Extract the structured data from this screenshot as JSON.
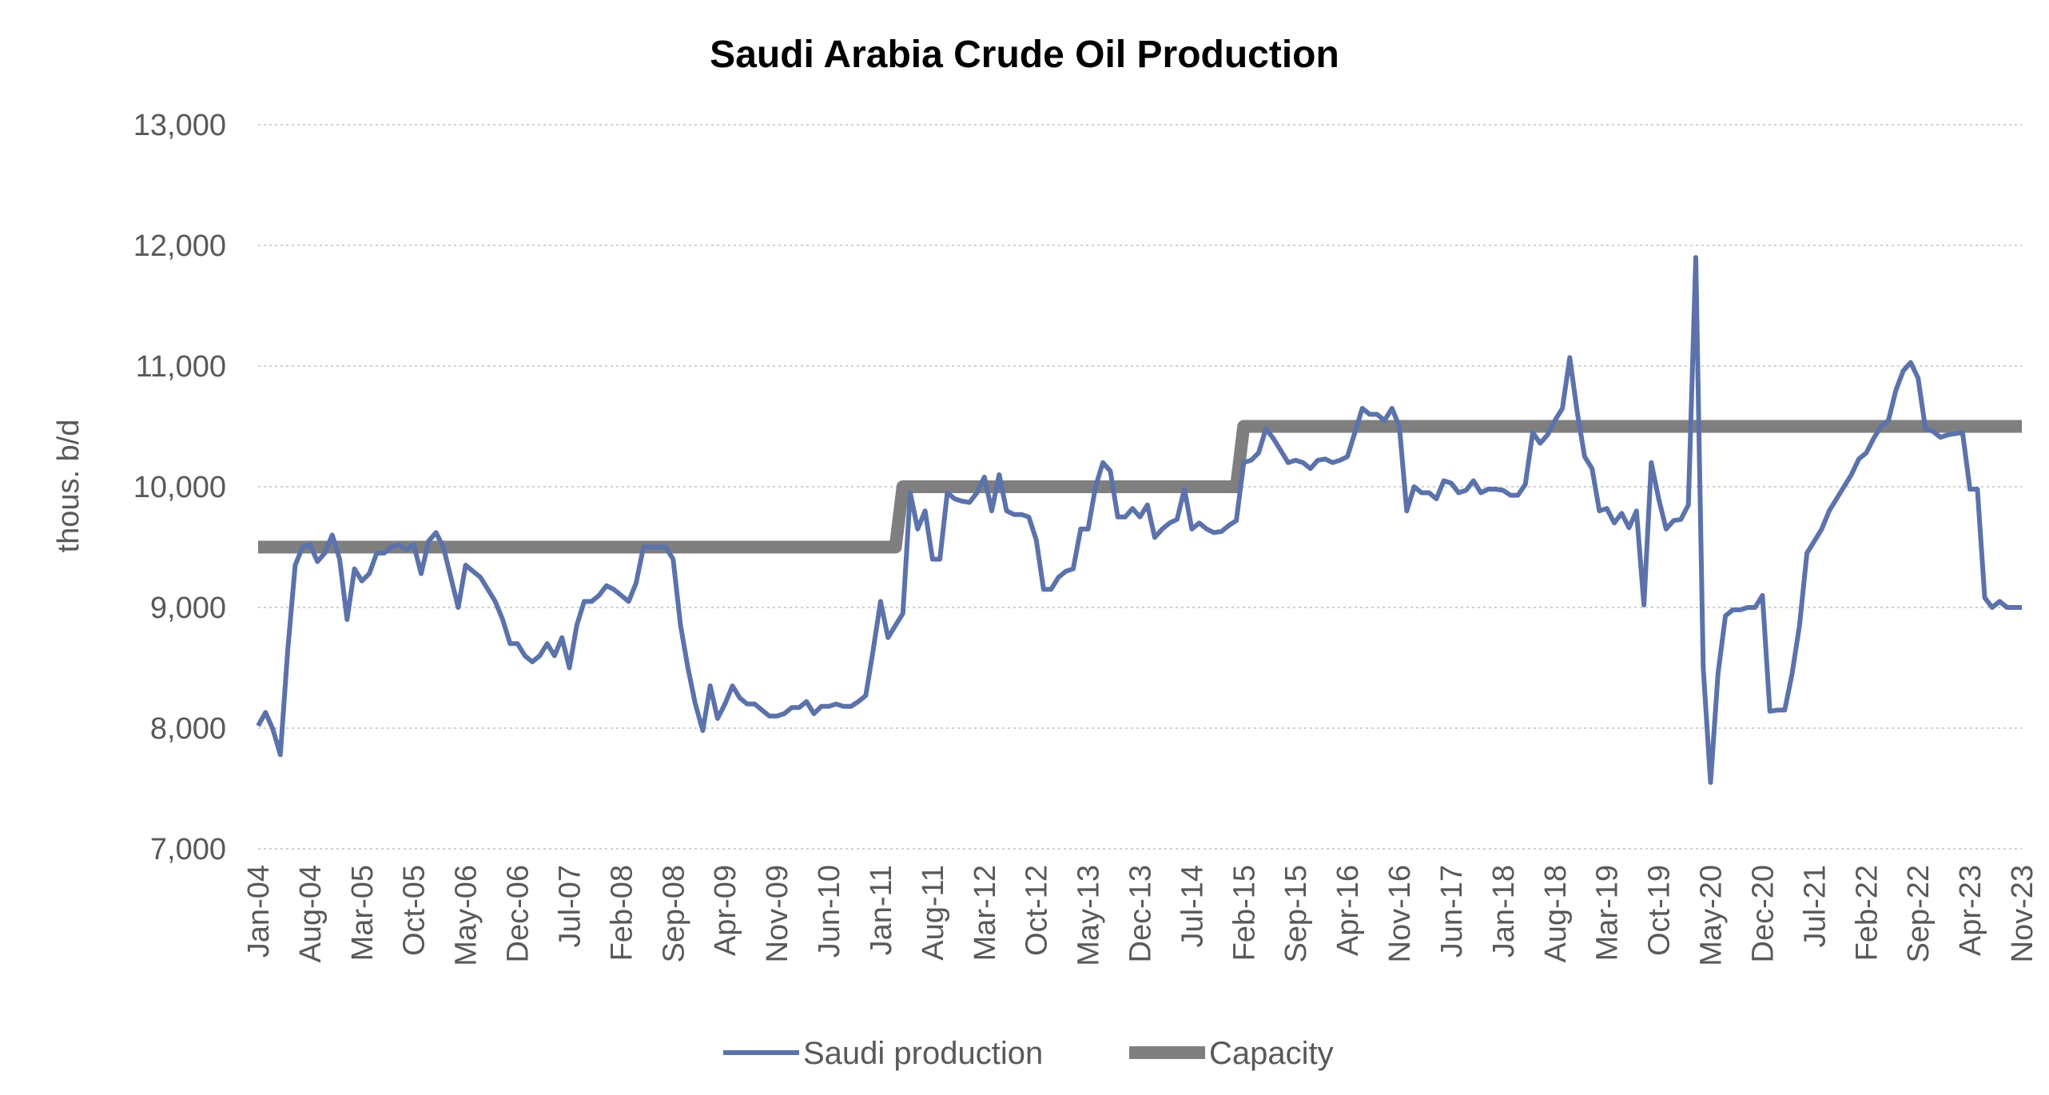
{
  "chart_data": {
    "type": "line",
    "title": "Saudi Arabia Crude Oil Production",
    "xlabel": "",
    "ylabel": "thous. b/d",
    "ylim": [
      7000,
      13000
    ],
    "yticks": [
      "7,000",
      "8,000",
      "9,000",
      "10,000",
      "11,000",
      "12,000",
      "13,000"
    ],
    "grid": "horizontal",
    "legend_position": "bottom",
    "x_tick_labels": [
      "Jan-04",
      "Aug-04",
      "Mar-05",
      "Oct-05",
      "May-06",
      "Dec-06",
      "Jul-07",
      "Feb-08",
      "Sep-08",
      "Apr-09",
      "Nov-09",
      "Jun-10",
      "Jan-11",
      "Aug-11",
      "Mar-12",
      "Oct-12",
      "May-13",
      "Dec-13",
      "Jul-14",
      "Feb-15",
      "Sep-15",
      "Apr-16",
      "Nov-16",
      "Jun-17",
      "Jan-18",
      "Aug-18",
      "Mar-19",
      "Oct-19",
      "May-20",
      "Dec-20",
      "Jul-21",
      "Feb-22",
      "Sep-22",
      "Apr-23",
      "Nov-23"
    ],
    "x_start": "2004-01",
    "x_end": "2023-11",
    "series": [
      {
        "name": "Saudi production",
        "color": "#5b72ab",
        "points": [
          [
            "2004-01",
            8020
          ],
          [
            "2004-02",
            8130
          ],
          [
            "2004-03",
            7990
          ],
          [
            "2004-04",
            7780
          ],
          [
            "2004-05",
            8650
          ],
          [
            "2004-06",
            9350
          ],
          [
            "2004-07",
            9500
          ],
          [
            "2004-08",
            9520
          ],
          [
            "2004-09",
            9380
          ],
          [
            "2004-10",
            9450
          ],
          [
            "2004-11",
            9600
          ],
          [
            "2004-12",
            9400
          ],
          [
            "2005-01",
            8900
          ],
          [
            "2005-02",
            9320
          ],
          [
            "2005-03",
            9220
          ],
          [
            "2005-04",
            9280
          ],
          [
            "2005-05",
            9450
          ],
          [
            "2005-06",
            9450
          ],
          [
            "2005-07",
            9500
          ],
          [
            "2005-08",
            9520
          ],
          [
            "2005-09",
            9480
          ],
          [
            "2005-10",
            9520
          ],
          [
            "2005-11",
            9280
          ],
          [
            "2005-12",
            9550
          ],
          [
            "2006-01",
            9620
          ],
          [
            "2006-02",
            9500
          ],
          [
            "2006-03",
            9250
          ],
          [
            "2006-04",
            9000
          ],
          [
            "2006-05",
            9350
          ],
          [
            "2006-06",
            9300
          ],
          [
            "2006-07",
            9250
          ],
          [
            "2006-08",
            9150
          ],
          [
            "2006-09",
            9050
          ],
          [
            "2006-10",
            8900
          ],
          [
            "2006-11",
            8700
          ],
          [
            "2006-12",
            8700
          ],
          [
            "2007-01",
            8600
          ],
          [
            "2007-02",
            8550
          ],
          [
            "2007-03",
            8600
          ],
          [
            "2007-04",
            8700
          ],
          [
            "2007-05",
            8600
          ],
          [
            "2007-06",
            8750
          ],
          [
            "2007-07",
            8500
          ],
          [
            "2007-08",
            8850
          ],
          [
            "2007-09",
            9050
          ],
          [
            "2007-10",
            9050
          ],
          [
            "2007-11",
            9100
          ],
          [
            "2007-12",
            9180
          ],
          [
            "2008-01",
            9150
          ],
          [
            "2008-02",
            9100
          ],
          [
            "2008-03",
            9050
          ],
          [
            "2008-04",
            9200
          ],
          [
            "2008-05",
            9500
          ],
          [
            "2008-06",
            9500
          ],
          [
            "2008-07",
            9500
          ],
          [
            "2008-08",
            9500
          ],
          [
            "2008-09",
            9400
          ],
          [
            "2008-10",
            8850
          ],
          [
            "2008-11",
            8500
          ],
          [
            "2008-12",
            8200
          ],
          [
            "2009-01",
            7980
          ],
          [
            "2009-02",
            8350
          ],
          [
            "2009-03",
            8080
          ],
          [
            "2009-04",
            8200
          ],
          [
            "2009-05",
            8350
          ],
          [
            "2009-06",
            8250
          ],
          [
            "2009-07",
            8200
          ],
          [
            "2009-08",
            8200
          ],
          [
            "2009-09",
            8150
          ],
          [
            "2009-10",
            8100
          ],
          [
            "2009-11",
            8100
          ],
          [
            "2009-12",
            8120
          ],
          [
            "2010-01",
            8170
          ],
          [
            "2010-02",
            8170
          ],
          [
            "2010-03",
            8220
          ],
          [
            "2010-04",
            8120
          ],
          [
            "2010-05",
            8180
          ],
          [
            "2010-06",
            8180
          ],
          [
            "2010-07",
            8200
          ],
          [
            "2010-08",
            8180
          ],
          [
            "2010-09",
            8180
          ],
          [
            "2010-10",
            8220
          ],
          [
            "2010-11",
            8270
          ],
          [
            "2010-12",
            8650
          ],
          [
            "2011-01",
            9050
          ],
          [
            "2011-02",
            8750
          ],
          [
            "2011-03",
            8850
          ],
          [
            "2011-04",
            8950
          ],
          [
            "2011-05",
            9950
          ],
          [
            "2011-06",
            9650
          ],
          [
            "2011-07",
            9800
          ],
          [
            "2011-08",
            9400
          ],
          [
            "2011-09",
            9400
          ],
          [
            "2011-10",
            9950
          ],
          [
            "2011-11",
            9900
          ],
          [
            "2011-12",
            9880
          ],
          [
            "2012-01",
            9870
          ],
          [
            "2012-02",
            9950
          ],
          [
            "2012-03",
            10080
          ],
          [
            "2012-04",
            9800
          ],
          [
            "2012-05",
            10100
          ],
          [
            "2012-06",
            9800
          ],
          [
            "2012-07",
            9770
          ],
          [
            "2012-08",
            9770
          ],
          [
            "2012-09",
            9750
          ],
          [
            "2012-10",
            9560
          ],
          [
            "2012-11",
            9150
          ],
          [
            "2012-12",
            9150
          ],
          [
            "2013-01",
            9250
          ],
          [
            "2013-02",
            9300
          ],
          [
            "2013-03",
            9320
          ],
          [
            "2013-04",
            9650
          ],
          [
            "2013-05",
            9650
          ],
          [
            "2013-06",
            10000
          ],
          [
            "2013-07",
            10200
          ],
          [
            "2013-08",
            10130
          ],
          [
            "2013-09",
            9750
          ],
          [
            "2013-10",
            9750
          ],
          [
            "2013-11",
            9820
          ],
          [
            "2013-12",
            9750
          ],
          [
            "2014-01",
            9850
          ],
          [
            "2014-02",
            9580
          ],
          [
            "2014-03",
            9650
          ],
          [
            "2014-04",
            9700
          ],
          [
            "2014-05",
            9730
          ],
          [
            "2014-06",
            9980
          ],
          [
            "2014-07",
            9650
          ],
          [
            "2014-08",
            9700
          ],
          [
            "2014-09",
            9650
          ],
          [
            "2014-10",
            9620
          ],
          [
            "2014-11",
            9630
          ],
          [
            "2014-12",
            9680
          ],
          [
            "2015-01",
            9720
          ],
          [
            "2015-02",
            10200
          ],
          [
            "2015-03",
            10220
          ],
          [
            "2015-04",
            10280
          ],
          [
            "2015-05",
            10480
          ],
          [
            "2015-06",
            10400
          ],
          [
            "2015-07",
            10300
          ],
          [
            "2015-08",
            10200
          ],
          [
            "2015-09",
            10220
          ],
          [
            "2015-10",
            10200
          ],
          [
            "2015-11",
            10150
          ],
          [
            "2015-12",
            10220
          ],
          [
            "2016-01",
            10230
          ],
          [
            "2016-02",
            10200
          ],
          [
            "2016-03",
            10220
          ],
          [
            "2016-04",
            10250
          ],
          [
            "2016-05",
            10450
          ],
          [
            "2016-06",
            10650
          ],
          [
            "2016-07",
            10600
          ],
          [
            "2016-08",
            10600
          ],
          [
            "2016-09",
            10550
          ],
          [
            "2016-10",
            10650
          ],
          [
            "2016-11",
            10500
          ],
          [
            "2016-12",
            9800
          ],
          [
            "2017-01",
            10000
          ],
          [
            "2017-02",
            9950
          ],
          [
            "2017-03",
            9950
          ],
          [
            "2017-04",
            9900
          ],
          [
            "2017-05",
            10050
          ],
          [
            "2017-06",
            10030
          ],
          [
            "2017-07",
            9950
          ],
          [
            "2017-08",
            9970
          ],
          [
            "2017-09",
            10050
          ],
          [
            "2017-10",
            9950
          ],
          [
            "2017-11",
            9980
          ],
          [
            "2017-12",
            9980
          ],
          [
            "2018-01",
            9970
          ],
          [
            "2018-02",
            9930
          ],
          [
            "2018-03",
            9930
          ],
          [
            "2018-04",
            10020
          ],
          [
            "2018-05",
            10450
          ],
          [
            "2018-06",
            10360
          ],
          [
            "2018-07",
            10430
          ],
          [
            "2018-08",
            10550
          ],
          [
            "2018-09",
            10650
          ],
          [
            "2018-10",
            11070
          ],
          [
            "2018-11",
            10620
          ],
          [
            "2018-12",
            10250
          ],
          [
            "2019-01",
            10150
          ],
          [
            "2019-02",
            9800
          ],
          [
            "2019-03",
            9820
          ],
          [
            "2019-04",
            9700
          ],
          [
            "2019-05",
            9780
          ],
          [
            "2019-06",
            9660
          ],
          [
            "2019-07",
            9800
          ],
          [
            "2019-08",
            9020
          ],
          [
            "2019-09",
            10200
          ],
          [
            "2019-10",
            9900
          ],
          [
            "2019-11",
            9650
          ],
          [
            "2019-12",
            9720
          ],
          [
            "2020-01",
            9730
          ],
          [
            "2020-02",
            9850
          ],
          [
            "2020-03",
            11900
          ],
          [
            "2020-04",
            8500
          ],
          [
            "2020-05",
            7550
          ],
          [
            "2020-06",
            8450
          ],
          [
            "2020-07",
            8930
          ],
          [
            "2020-08",
            8980
          ],
          [
            "2020-09",
            8980
          ],
          [
            "2020-10",
            9000
          ],
          [
            "2020-11",
            9000
          ],
          [
            "2020-12",
            9100
          ],
          [
            "2021-01",
            8140
          ],
          [
            "2021-02",
            8150
          ],
          [
            "2021-03",
            8150
          ],
          [
            "2021-04",
            8450
          ],
          [
            "2021-05",
            8850
          ],
          [
            "2021-06",
            9450
          ],
          [
            "2021-07",
            9550
          ],
          [
            "2021-08",
            9650
          ],
          [
            "2021-09",
            9800
          ],
          [
            "2021-10",
            9900
          ],
          [
            "2021-11",
            10000
          ],
          [
            "2021-12",
            10100
          ],
          [
            "2022-01",
            10230
          ],
          [
            "2022-02",
            10280
          ],
          [
            "2022-03",
            10400
          ],
          [
            "2022-04",
            10500
          ],
          [
            "2022-05",
            10550
          ],
          [
            "2022-06",
            10800
          ],
          [
            "2022-07",
            10960
          ],
          [
            "2022-08",
            11030
          ],
          [
            "2022-09",
            10900
          ],
          [
            "2022-10",
            10480
          ],
          [
            "2022-11",
            10460
          ],
          [
            "2022-12",
            10410
          ],
          [
            "2023-01",
            10430
          ],
          [
            "2023-02",
            10440
          ],
          [
            "2023-03",
            10450
          ],
          [
            "2023-04",
            9980
          ],
          [
            "2023-05",
            9980
          ],
          [
            "2023-06",
            9080
          ],
          [
            "2023-07",
            9000
          ],
          [
            "2023-08",
            9050
          ],
          [
            "2023-09",
            9000
          ],
          [
            "2023-10",
            9000
          ],
          [
            "2023-11",
            9000
          ]
        ]
      },
      {
        "name": "Capacity",
        "color": "#7f7f7f",
        "points": [
          [
            "2004-01",
            9500
          ],
          [
            "2011-03",
            9500
          ],
          [
            "2011-04",
            10000
          ],
          [
            "2015-01",
            10000
          ],
          [
            "2015-02",
            10500
          ],
          [
            "2023-11",
            10500
          ]
        ]
      }
    ]
  }
}
